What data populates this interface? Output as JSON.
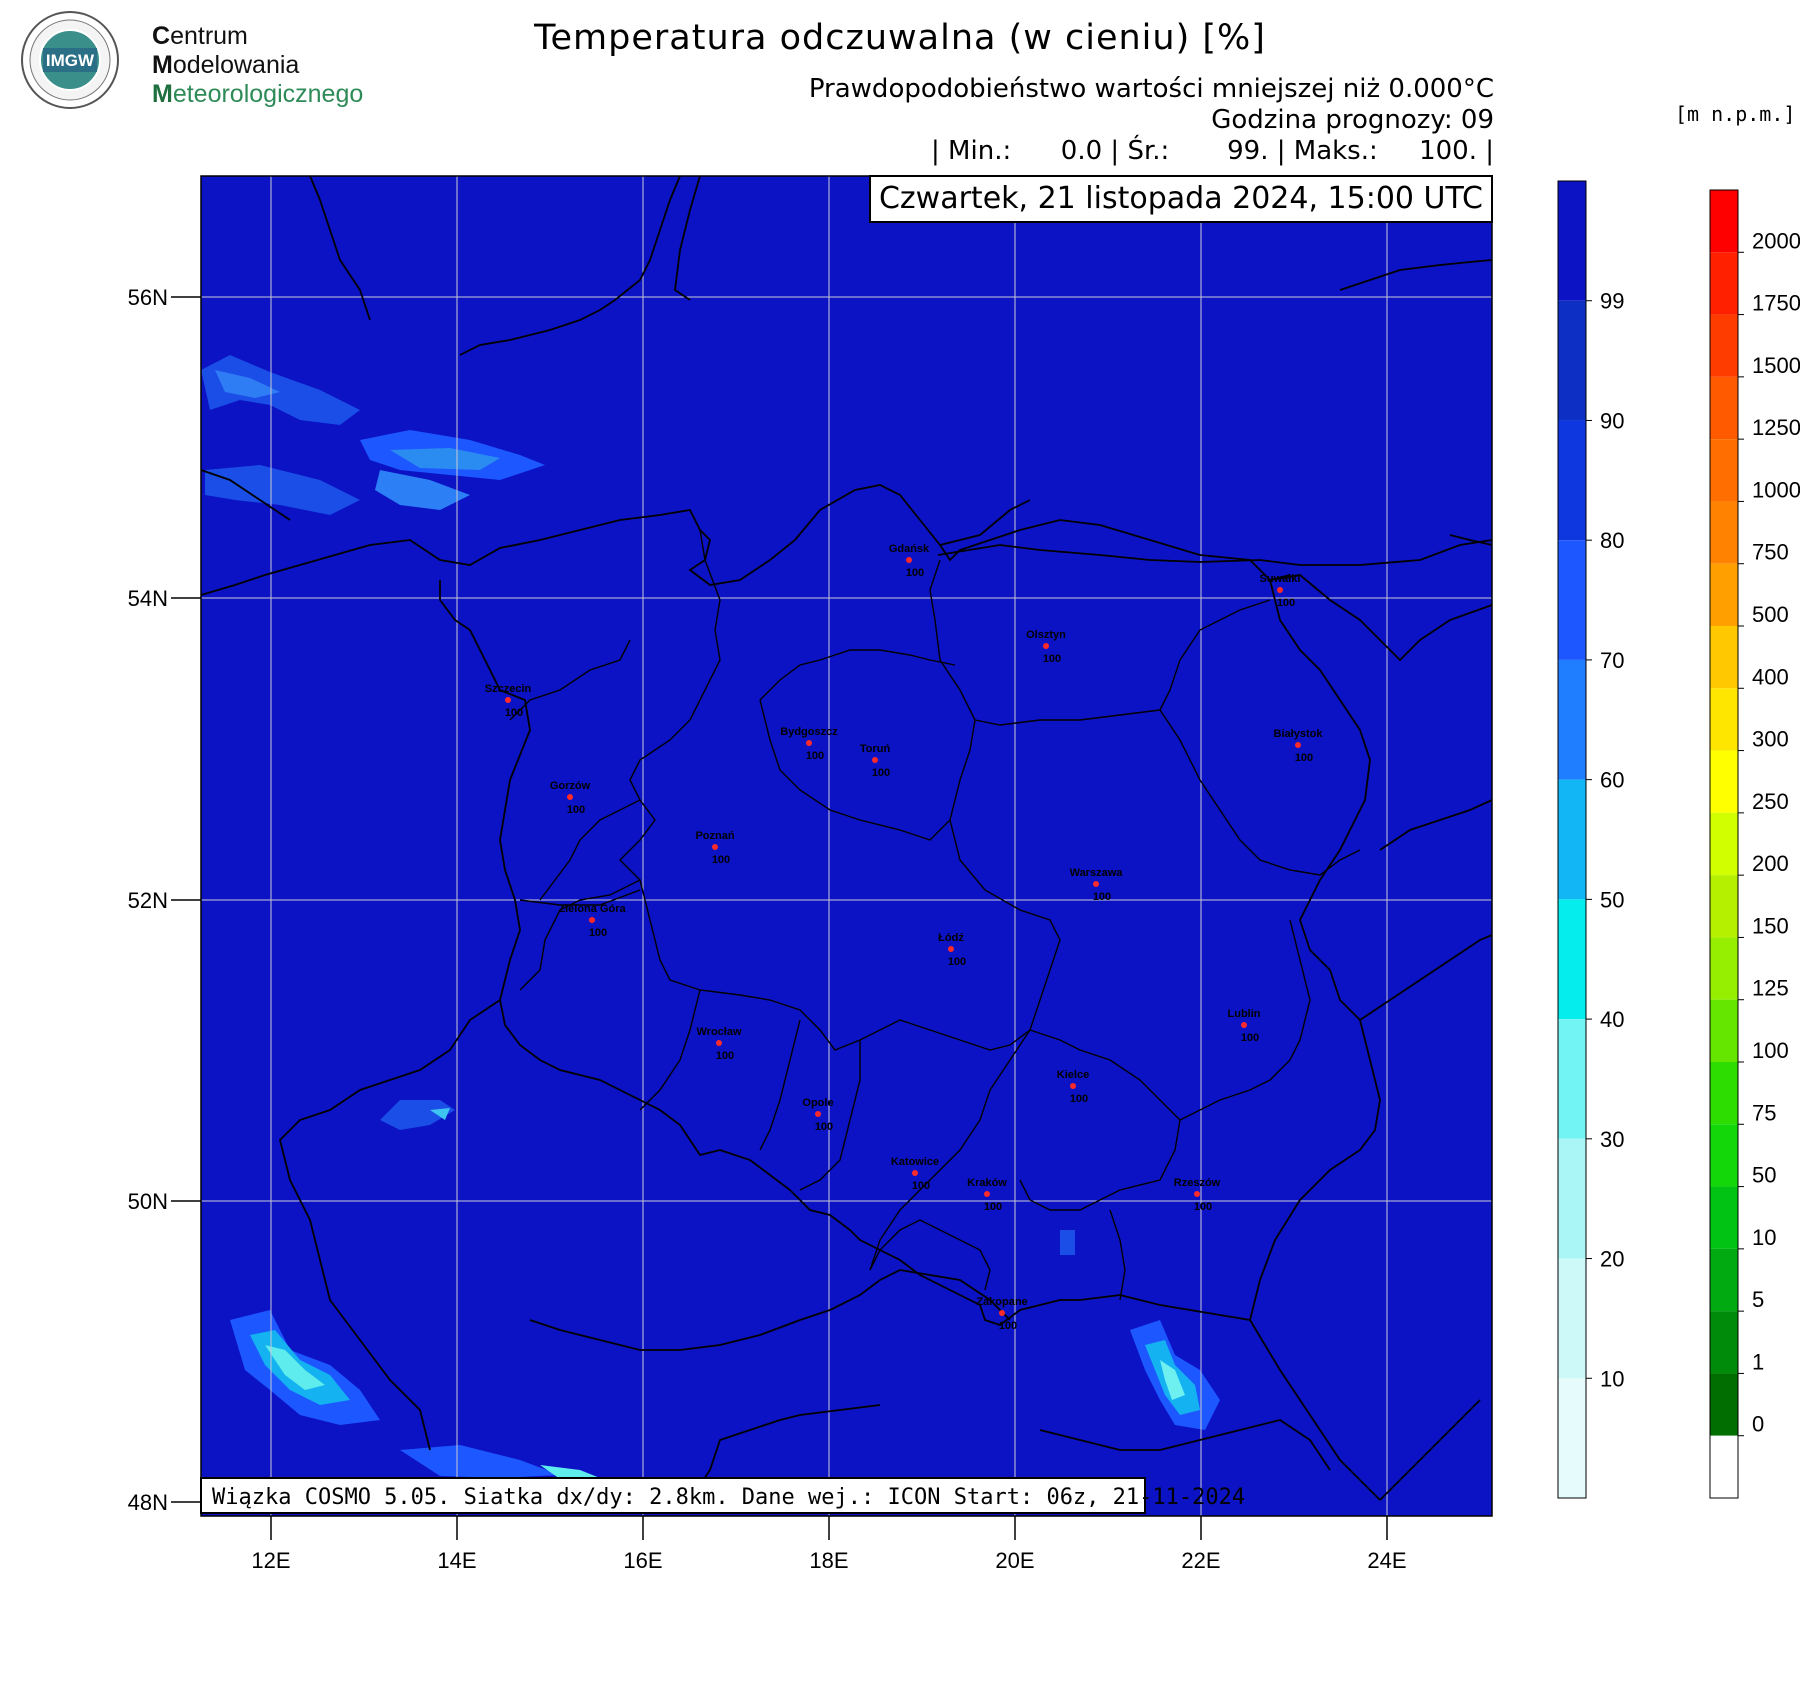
{
  "logo": {
    "badge_text": "IM GW",
    "name_line_1_cap": "C",
    "name_line_1_rest": "entrum",
    "name_line_2_cap": "M",
    "name_line_2_rest": "odelowania",
    "name_line_3_cap": "M",
    "name_line_3_rest": "eteorologicznego"
  },
  "header": {
    "title": "Temperatura odczuwalna (w cieniu) [%]",
    "subtitle": "Prawdopodobieństwo wartości mniejszej niż 0.000°C",
    "forecast_hour": "Godzina prognozy: 09",
    "stats": "| Min.:      0.0 | Śr.:       99. | Maks.:     100. |"
  },
  "map": {
    "datetime": "Czwartek, 21 listopada 2024, 15:00 UTC",
    "model_info": "Wiązka COSMO 5.05. Siatka dx/dy: 2.8km. Dane wej.: ICON Start: 06z, 21-11-2024",
    "lat_labels": [
      "56N",
      "54N",
      "52N",
      "50N",
      "48N"
    ],
    "lon_labels": [
      "12E",
      "14E",
      "16E",
      "18E",
      "20E",
      "22E",
      "24E"
    ],
    "base_color": "#0b13c4",
    "cities": [
      {
        "name": "Gdańsk",
        "value": "100"
      },
      {
        "name": "Suwałki",
        "value": "100"
      },
      {
        "name": "Olsztyn",
        "value": "100"
      },
      {
        "name": "Szczecin",
        "value": "100"
      },
      {
        "name": "Bydgoszcz",
        "value": "100"
      },
      {
        "name": "Toruń",
        "value": "100"
      },
      {
        "name": "Białystok",
        "value": "100"
      },
      {
        "name": "Gorzów",
        "value": "100"
      },
      {
        "name": "Poznań",
        "value": "100"
      },
      {
        "name": "Warszawa",
        "value": "100"
      },
      {
        "name": "Zielona Góra",
        "value": "100"
      },
      {
        "name": "Łódź",
        "value": "100"
      },
      {
        "name": "Lublin",
        "value": "100"
      },
      {
        "name": "Wrocław",
        "value": "100"
      },
      {
        "name": "Kielce",
        "value": "100"
      },
      {
        "name": "Opole",
        "value": "100"
      },
      {
        "name": "Katowice",
        "value": "100"
      },
      {
        "name": "Kraków",
        "value": "100"
      },
      {
        "name": "Rzeszów",
        "value": "100"
      },
      {
        "name": "Zakopane",
        "value": "100"
      }
    ]
  },
  "probability_legend": {
    "labels": [
      "99",
      "90",
      "80",
      "70",
      "60",
      "50",
      "40",
      "30",
      "20",
      "10"
    ],
    "colors": [
      "#0b13c4",
      "#0d2fc4",
      "#0e37e0",
      "#1d57ff",
      "#1f7dff",
      "#12b6f5",
      "#05eded",
      "#73f4f4",
      "#aaf6f6",
      "#cdf9f9",
      "#e6fcfc"
    ]
  },
  "height_legend": {
    "unit": "[m n.p.m.]",
    "labels": [
      "2000",
      "1750",
      "1500",
      "1250",
      "1000",
      "750",
      "500",
      "400",
      "300",
      "250",
      "200",
      "150",
      "125",
      "100",
      "75",
      "50",
      "10",
      "5",
      "1",
      "0"
    ],
    "colors": [
      "#ff0000",
      "#ff2000",
      "#ff3c00",
      "#ff5a00",
      "#ff6e00",
      "#ff8200",
      "#ffa000",
      "#ffc800",
      "#ffe600",
      "#ffff00",
      "#d2ff00",
      "#b4f000",
      "#96ee00",
      "#64e600",
      "#2ddc00",
      "#14d70a",
      "#00c314",
      "#00aa10",
      "#008c0a",
      "#006e00",
      "#ffffff"
    ]
  }
}
